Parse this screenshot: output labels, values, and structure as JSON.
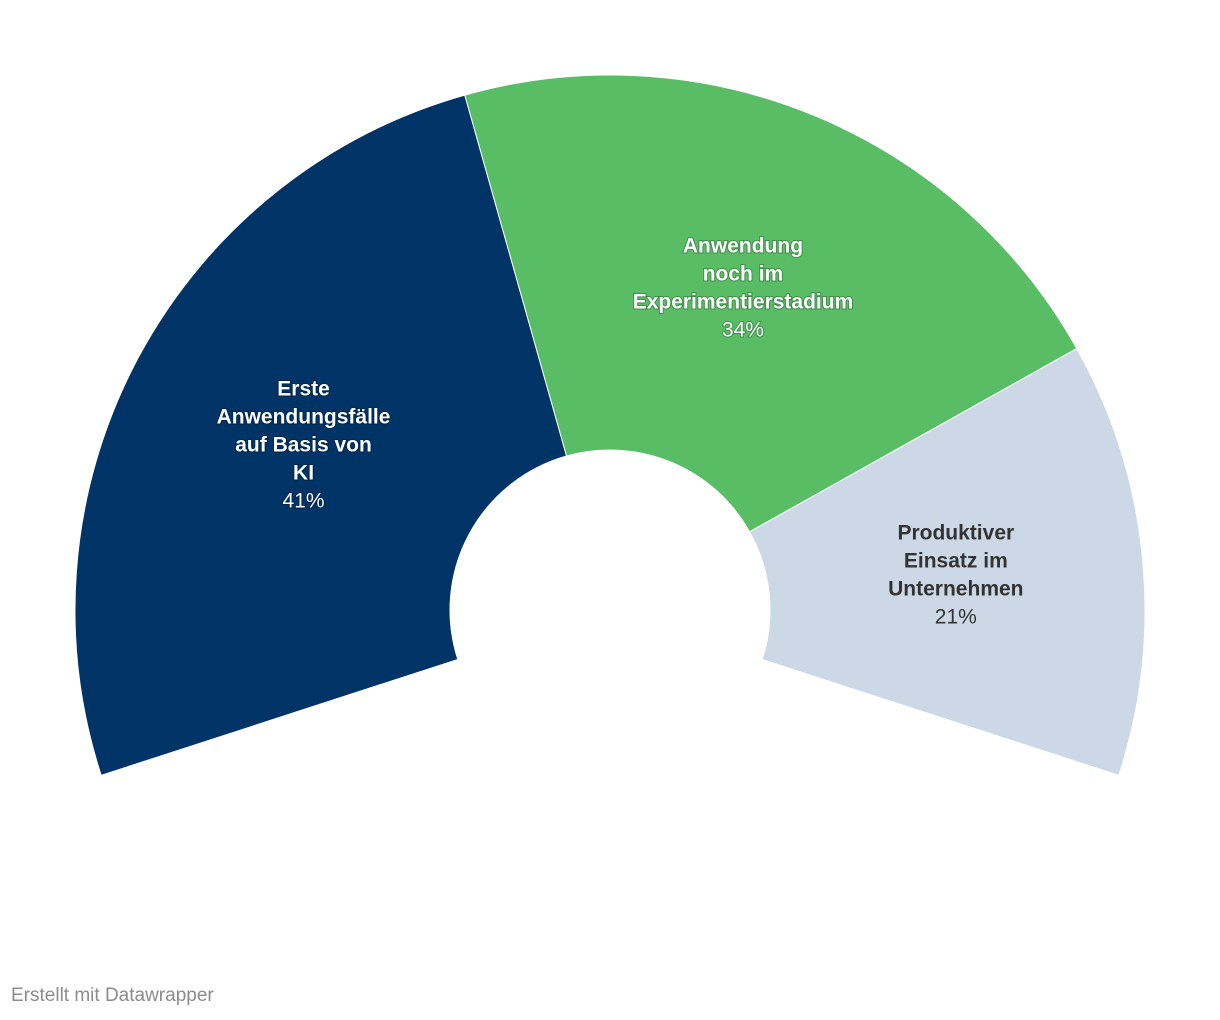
{
  "chart_data": {
    "type": "pie",
    "variant": "half-donut",
    "title": "",
    "categories": [
      "Erste Anwendungsfälle auf Basis von KI",
      "Anwendung noch im Experimentierstadium",
      "Produktiver Einsatz im Unternehmen"
    ],
    "values": [
      41,
      34,
      21
    ],
    "value_labels": [
      "41%",
      "34%",
      "21%"
    ],
    "label_lines": [
      [
        "Erste",
        "Anwendungsfälle",
        "auf Basis von",
        "KI"
      ],
      [
        "Anwendung",
        "noch im",
        "Experimentierstadium"
      ],
      [
        "Produktiver",
        "Einsatz im",
        "Unternehmen"
      ]
    ],
    "colors": [
      "#003366",
      "#59bd66",
      "#ccd8e6"
    ],
    "label_text_colors": [
      "light",
      "light",
      "dark"
    ],
    "legend": "none"
  },
  "footer": {
    "credit": "Erstellt mit Datawrapper"
  }
}
